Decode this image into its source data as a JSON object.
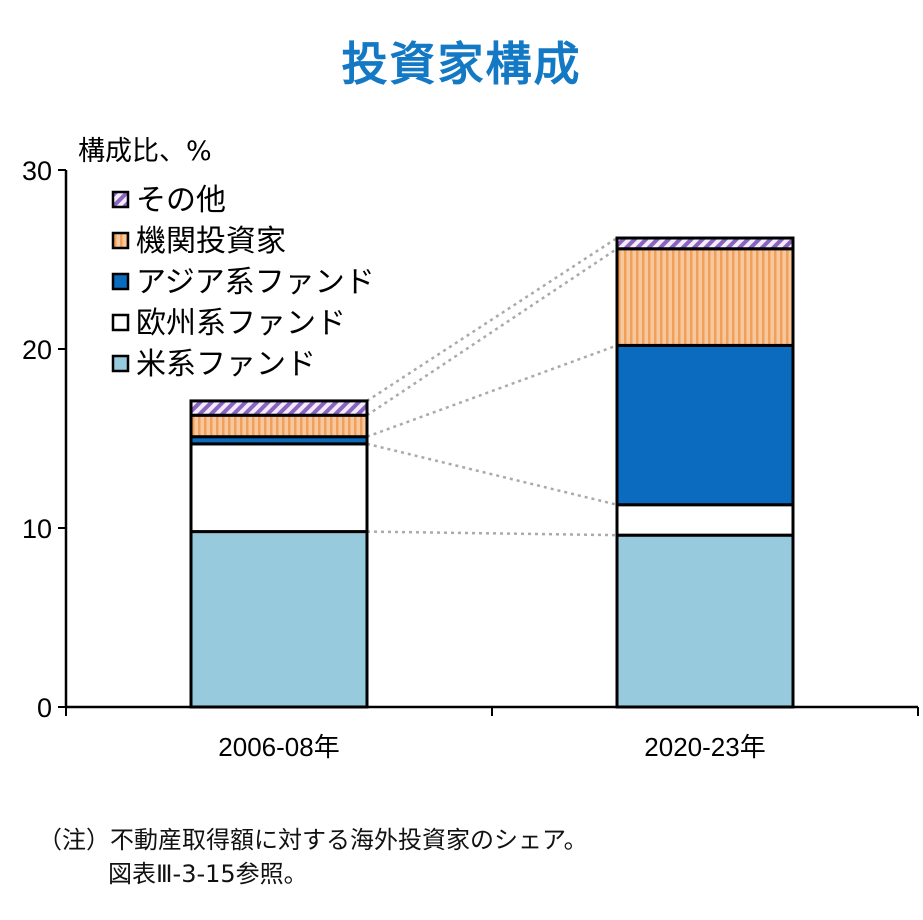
{
  "colors": {
    "us_funds": "#96cadc",
    "europe_funds": "#ffffff",
    "asia_funds": "#0a6bbf",
    "institutional": "#f7c79d",
    "institutional_stripe": "#f0a05b",
    "other": "#f3ecfa",
    "other_stripe": "#8a64c0",
    "title": "#1479c4",
    "connector": "#aaaaaa"
  },
  "chart_data": {
    "type": "bar",
    "stacked": true,
    "title": "投資家構成",
    "ylabel": "構成比、%",
    "ylim": [
      0,
      30
    ],
    "yticks": [
      0,
      10,
      20,
      30
    ],
    "grid": false,
    "legend_position": "top-left",
    "categories": [
      "2006-08年",
      "2020-23年"
    ],
    "series": [
      {
        "name": "米系ファンド",
        "key": "us_funds",
        "pattern": "solid",
        "values": [
          9.8,
          9.6
        ]
      },
      {
        "name": "欧州系ファンド",
        "key": "europe_funds",
        "pattern": "solid",
        "values": [
          4.9,
          1.7
        ]
      },
      {
        "name": "アジア系ファンド",
        "key": "asia_funds",
        "pattern": "solid",
        "values": [
          0.4,
          8.9
        ]
      },
      {
        "name": "機関投資家",
        "key": "institutional",
        "pattern": "vertical-stripes",
        "values": [
          1.2,
          5.4
        ]
      },
      {
        "name": "その他",
        "key": "other",
        "pattern": "diagonal-stripes",
        "values": [
          0.8,
          0.6
        ]
      }
    ],
    "legend_order": [
      "その他",
      "機関投資家",
      "アジア系ファンド",
      "欧州系ファンド",
      "米系ファンド"
    ],
    "connector_lines": true
  },
  "note": {
    "line1": "（注）不動産取得額に対する海外投資家のシェア。",
    "line2": "図表Ⅲ-3-15参照。"
  }
}
